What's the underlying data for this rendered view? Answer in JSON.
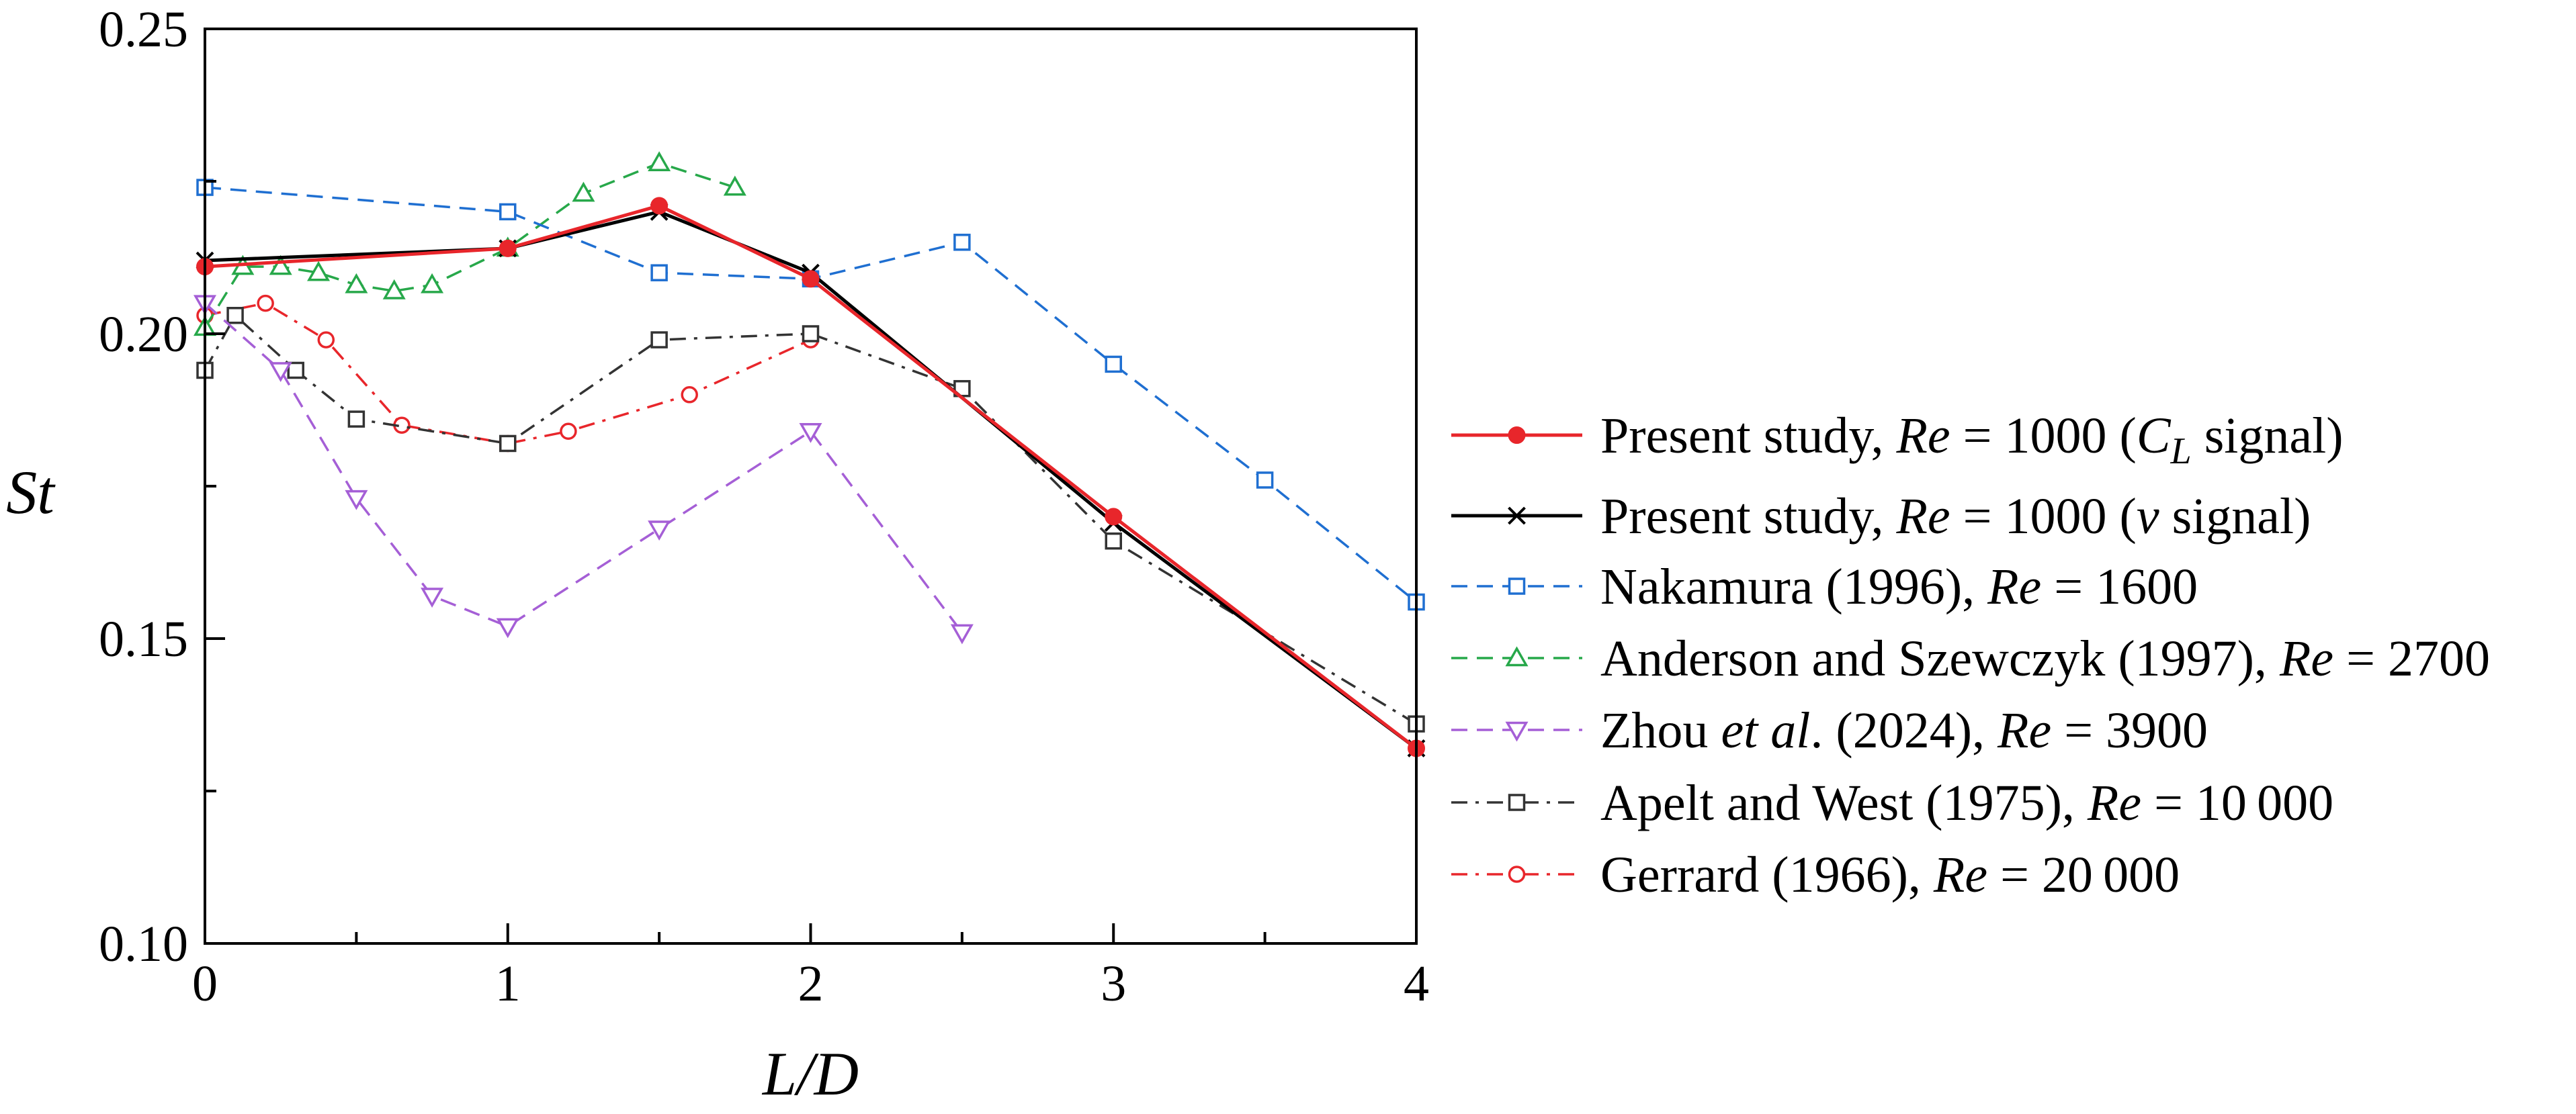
{
  "chart_data": {
    "type": "line",
    "xlabel": "L/D",
    "ylabel": "St",
    "xlim": [
      0,
      4
    ],
    "ylim": [
      0.1,
      0.25
    ],
    "x_ticks": [
      0,
      1,
      2,
      3,
      4
    ],
    "x_tick_labels": [
      "0",
      "1",
      "2",
      "3",
      "4"
    ],
    "x_minor_ticks": [
      0.5,
      1.5,
      2.5,
      3.5
    ],
    "y_ticks": [
      0.1,
      0.15,
      0.2,
      0.25
    ],
    "y_tick_labels": [
      "0.10",
      "0.15",
      "0.20",
      "0.25"
    ],
    "y_minor_ticks": [
      0.125,
      0.175,
      0.225
    ],
    "grid": false,
    "legend_position": "right",
    "series": [
      {
        "legend": [
          {
            "text": "Present study, ",
            "italic": false
          },
          {
            "text": "Re",
            "italic": true
          },
          {
            "text": " = 1000 (",
            "italic": false
          },
          {
            "text": "C",
            "italic": true
          },
          {
            "text": "L",
            "italic": true,
            "sub": true
          },
          {
            "text": " signal)",
            "italic": false
          }
        ],
        "color": "#e8262b",
        "marker": "filled-circle",
        "dash": "solid",
        "x": [
          0,
          1,
          1.5,
          2,
          3,
          4
        ],
        "y": [
          0.211,
          0.214,
          0.221,
          0.209,
          0.17,
          0.132
        ]
      },
      {
        "legend": [
          {
            "text": "Present study, ",
            "italic": false
          },
          {
            "text": "Re",
            "italic": true
          },
          {
            "text": " = 1000 (",
            "italic": false
          },
          {
            "text": "v",
            "italic": true
          },
          {
            "text": " signal)",
            "italic": false
          }
        ],
        "color": "#000000",
        "marker": "x",
        "dash": "solid",
        "x": [
          0,
          1,
          1.5,
          2,
          3,
          4
        ],
        "y": [
          0.212,
          0.214,
          0.22,
          0.21,
          0.169,
          0.132
        ]
      },
      {
        "legend": [
          {
            "text": "Nakamura (1996), ",
            "italic": false
          },
          {
            "text": "Re",
            "italic": true
          },
          {
            "text": " = 1600",
            "italic": false
          }
        ],
        "color": "#1f6fd1",
        "marker": "square",
        "dash": "dashed",
        "x": [
          0,
          1,
          1.5,
          2,
          2.5,
          3,
          3.5,
          4
        ],
        "y": [
          0.224,
          0.22,
          0.21,
          0.209,
          0.215,
          0.195,
          0.176,
          0.156
        ]
      },
      {
        "legend": [
          {
            "text": "Anderson and Szewczyk (1997), ",
            "italic": false
          },
          {
            "text": "Re",
            "italic": true
          },
          {
            "text": " = 2700",
            "italic": false
          }
        ],
        "color": "#27a84a",
        "marker": "triangle-up",
        "dash": "dashed",
        "x": [
          0,
          0.125,
          0.25,
          0.375,
          0.5,
          0.625,
          0.75,
          1,
          1.25,
          1.5,
          1.75
        ],
        "y": [
          0.201,
          0.211,
          0.211,
          0.21,
          0.208,
          0.207,
          0.208,
          0.214,
          0.223,
          0.228,
          0.224
        ]
      },
      {
        "legend": [
          {
            "text": "Zhou ",
            "italic": false
          },
          {
            "text": "et al",
            "italic": true
          },
          {
            "text": ". (2024), ",
            "italic": false
          },
          {
            "text": "Re",
            "italic": true
          },
          {
            "text": " = 3900",
            "italic": false
          }
        ],
        "color": "#a55fd6",
        "marker": "triangle-down",
        "dash": "dashed",
        "x": [
          0,
          0.25,
          0.5,
          0.75,
          1,
          1.5,
          2,
          2.5
        ],
        "y": [
          0.205,
          0.194,
          0.173,
          0.157,
          0.152,
          0.168,
          0.184,
          0.151
        ]
      },
      {
        "legend": [
          {
            "text": "Apelt and West (1975), ",
            "italic": false
          },
          {
            "text": "Re",
            "italic": true
          },
          {
            "text": " = 10 000",
            "italic": false
          }
        ],
        "color": "#333333",
        "marker": "square",
        "dash": "dashdot",
        "x": [
          0,
          0.1,
          0.3,
          0.5,
          1,
          1.5,
          2,
          2.5,
          3,
          4
        ],
        "y": [
          0.194,
          0.203,
          0.194,
          0.186,
          0.182,
          0.199,
          0.2,
          0.191,
          0.166,
          0.136
        ]
      },
      {
        "legend": [
          {
            "text": "Gerrard (1966), ",
            "italic": false
          },
          {
            "text": "Re",
            "italic": true
          },
          {
            "text": " = 20 000",
            "italic": false
          }
        ],
        "color": "#e8262b",
        "marker": "circle",
        "dash": "dashdot",
        "x": [
          0,
          0.2,
          0.4,
          0.65,
          1,
          1.2,
          1.6,
          2
        ],
        "y": [
          0.203,
          0.205,
          0.199,
          0.185,
          0.182,
          0.184,
          0.19,
          0.199
        ]
      }
    ]
  }
}
